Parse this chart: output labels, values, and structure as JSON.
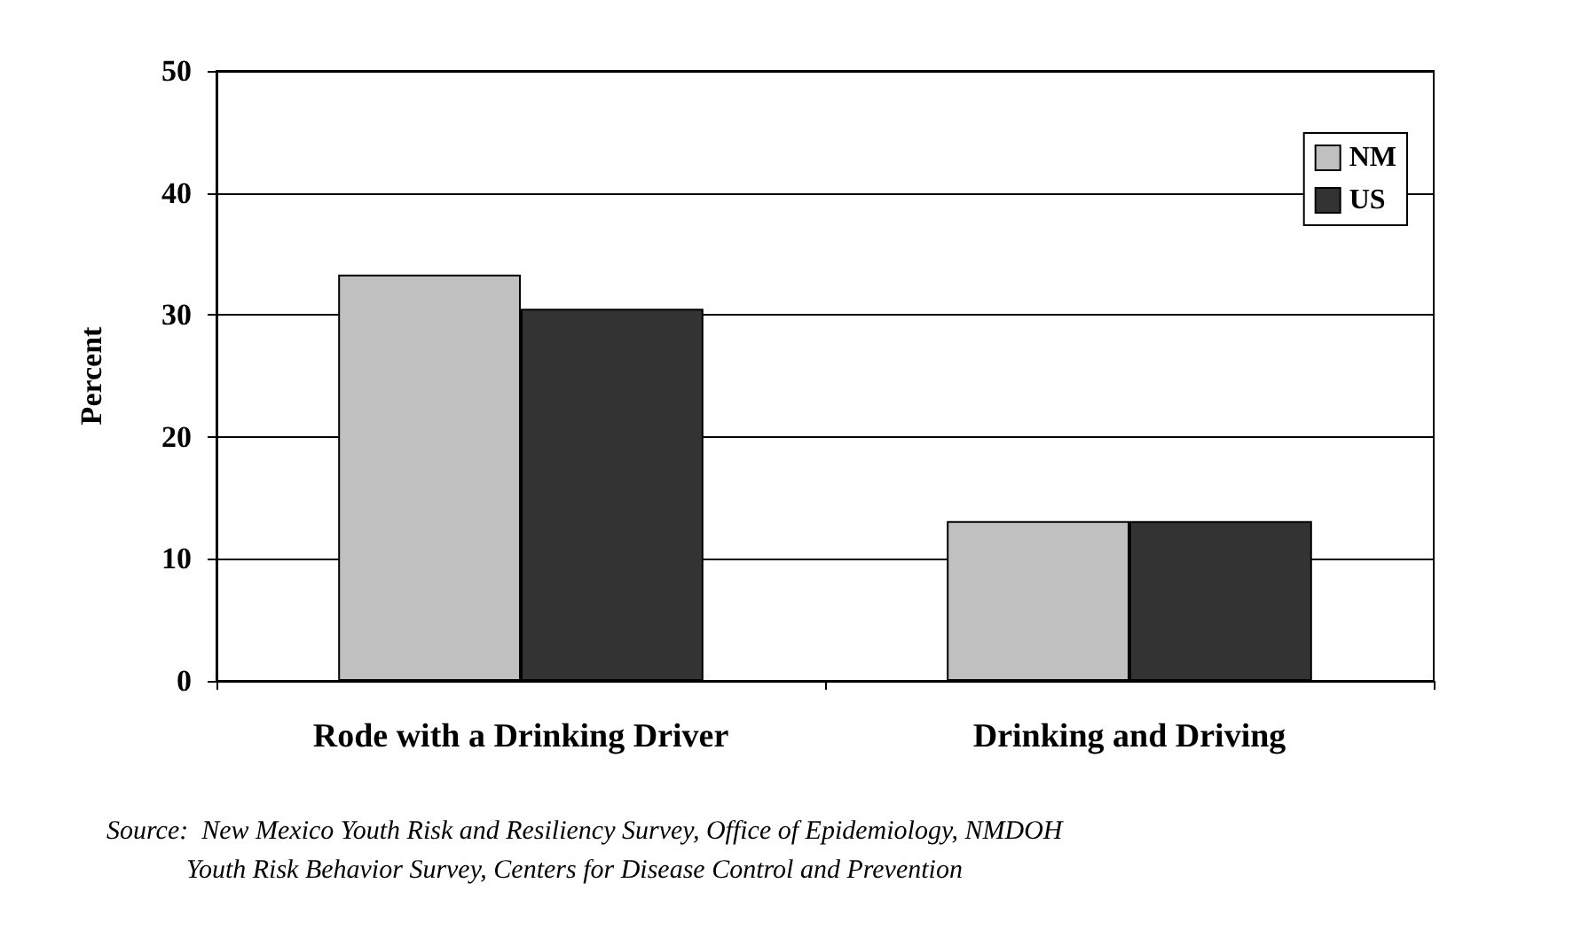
{
  "chart_data": {
    "type": "bar",
    "ylabel": "Percent",
    "categories": [
      "Rode with a Drinking Driver",
      "Drinking and Driving"
    ],
    "series": [
      {
        "name": "NM",
        "color": "#c0c0c0",
        "values": [
          33.3,
          13.1
        ]
      },
      {
        "name": "US",
        "color": "#333333",
        "values": [
          30.5,
          13.1
        ]
      }
    ],
    "ylim": [
      0,
      50
    ],
    "yticks": [
      0,
      10,
      20,
      30,
      40,
      50
    ],
    "grid": "y",
    "legend": "top right",
    "annotations": [
      "Source:  New Mexico Youth Risk and Resiliency Survey, Office of Epidemiology, NMDOH\n            Youth Risk Behavior Survey, Centers for Disease Control and Prevention"
    ]
  }
}
